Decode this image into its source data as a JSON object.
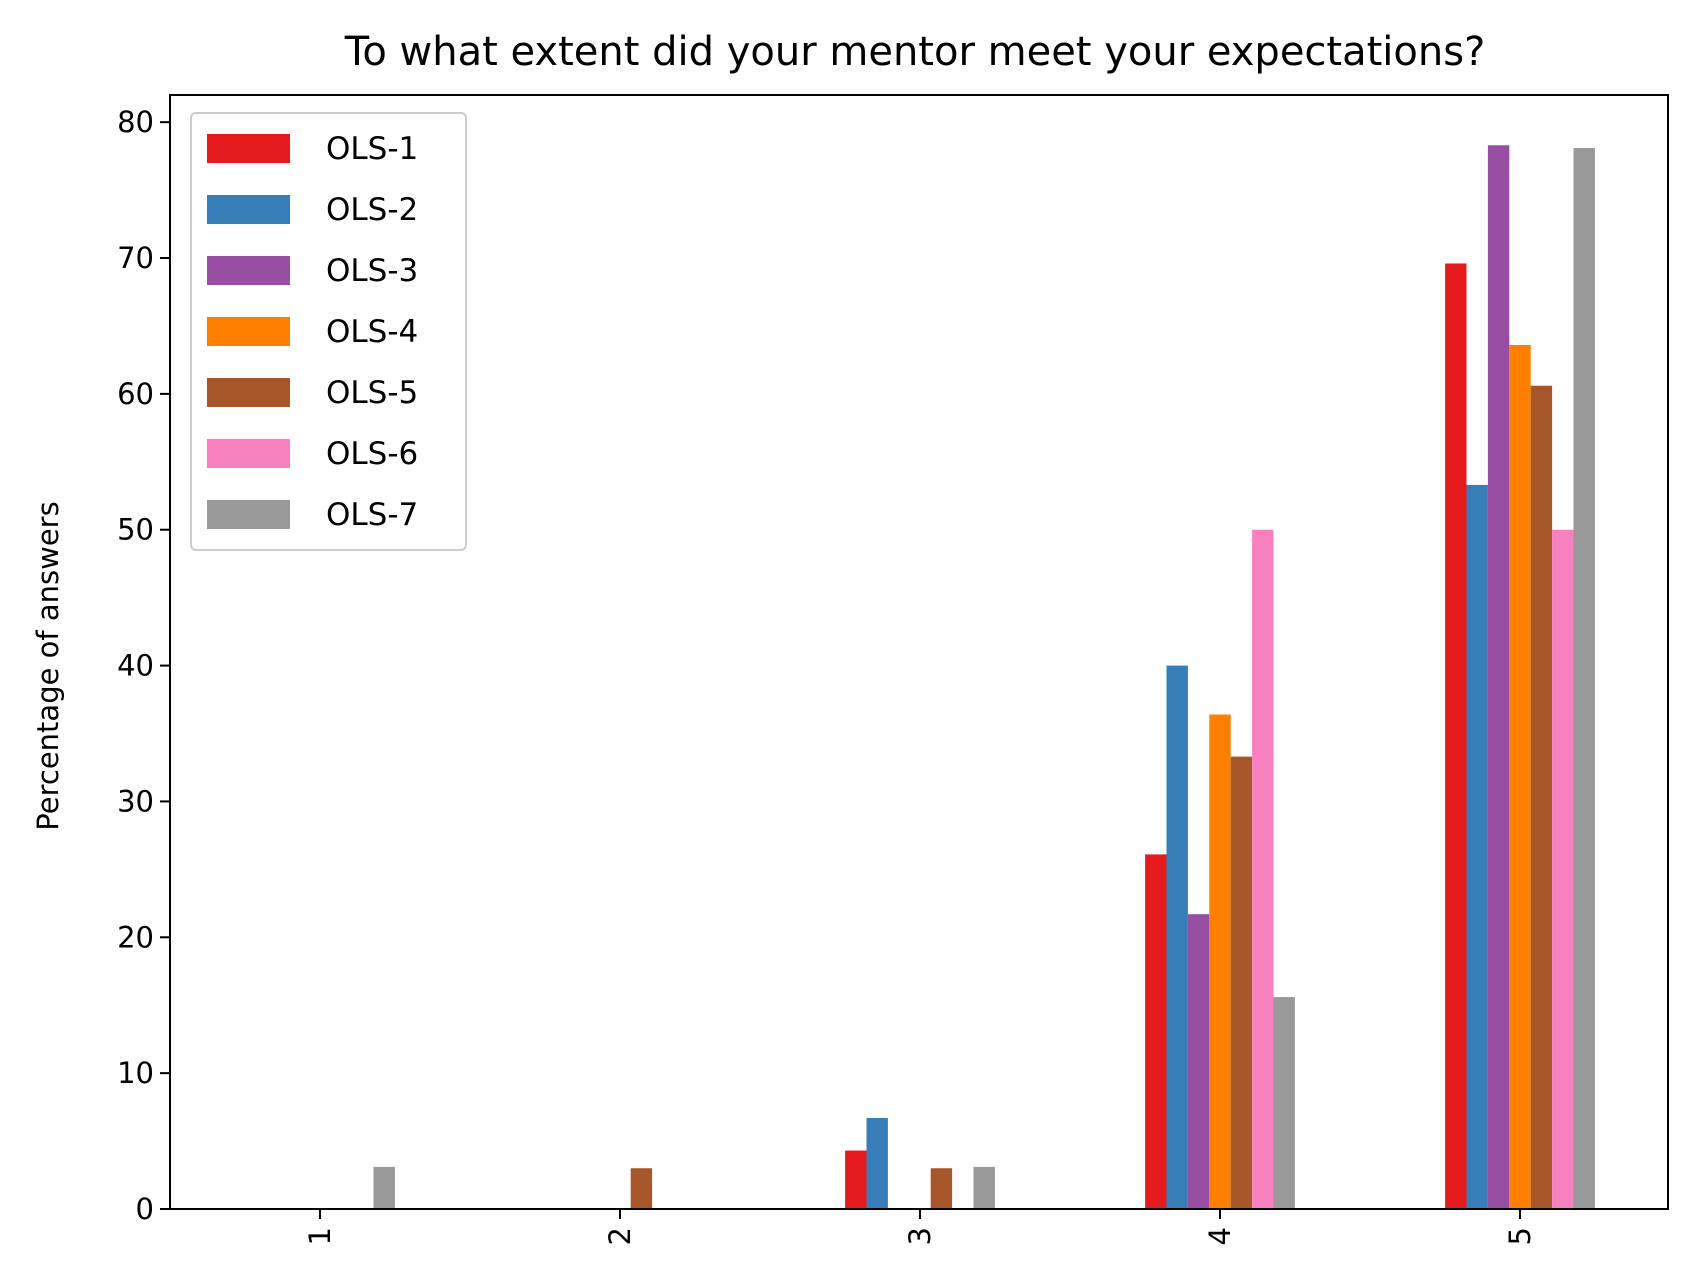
{
  "chart_data": {
    "type": "bar",
    "title": "To what extent did your mentor meet your expectations?",
    "xlabel": "",
    "ylabel": "Percentage of answers",
    "categories": [
      "1",
      "2",
      "3",
      "4",
      "5"
    ],
    "ylim": [
      0,
      82
    ],
    "yticks": [
      0,
      10,
      20,
      30,
      40,
      50,
      60,
      70,
      80
    ],
    "grid": false,
    "legend_position": "top-left",
    "series": [
      {
        "name": "OLS-1",
        "color": "#e41a1c",
        "values": [
          0,
          0,
          4.3,
          26.1,
          69.6
        ]
      },
      {
        "name": "OLS-2",
        "color": "#377eb8",
        "values": [
          0,
          0,
          6.7,
          40.0,
          53.3
        ]
      },
      {
        "name": "OLS-3",
        "color": "#984ea3",
        "values": [
          0,
          0,
          0,
          21.7,
          78.3
        ]
      },
      {
        "name": "OLS-4",
        "color": "#ff7f00",
        "values": [
          0,
          0,
          0,
          36.4,
          63.6
        ]
      },
      {
        "name": "OLS-5",
        "color": "#a65628",
        "values": [
          0,
          3.0,
          3.0,
          33.3,
          60.6
        ]
      },
      {
        "name": "OLS-6",
        "color": "#f781bf",
        "values": [
          0,
          0,
          0,
          50.0,
          50.0
        ]
      },
      {
        "name": "OLS-7",
        "color": "#999999",
        "values": [
          3.1,
          0,
          3.1,
          15.6,
          78.1
        ]
      }
    ]
  }
}
